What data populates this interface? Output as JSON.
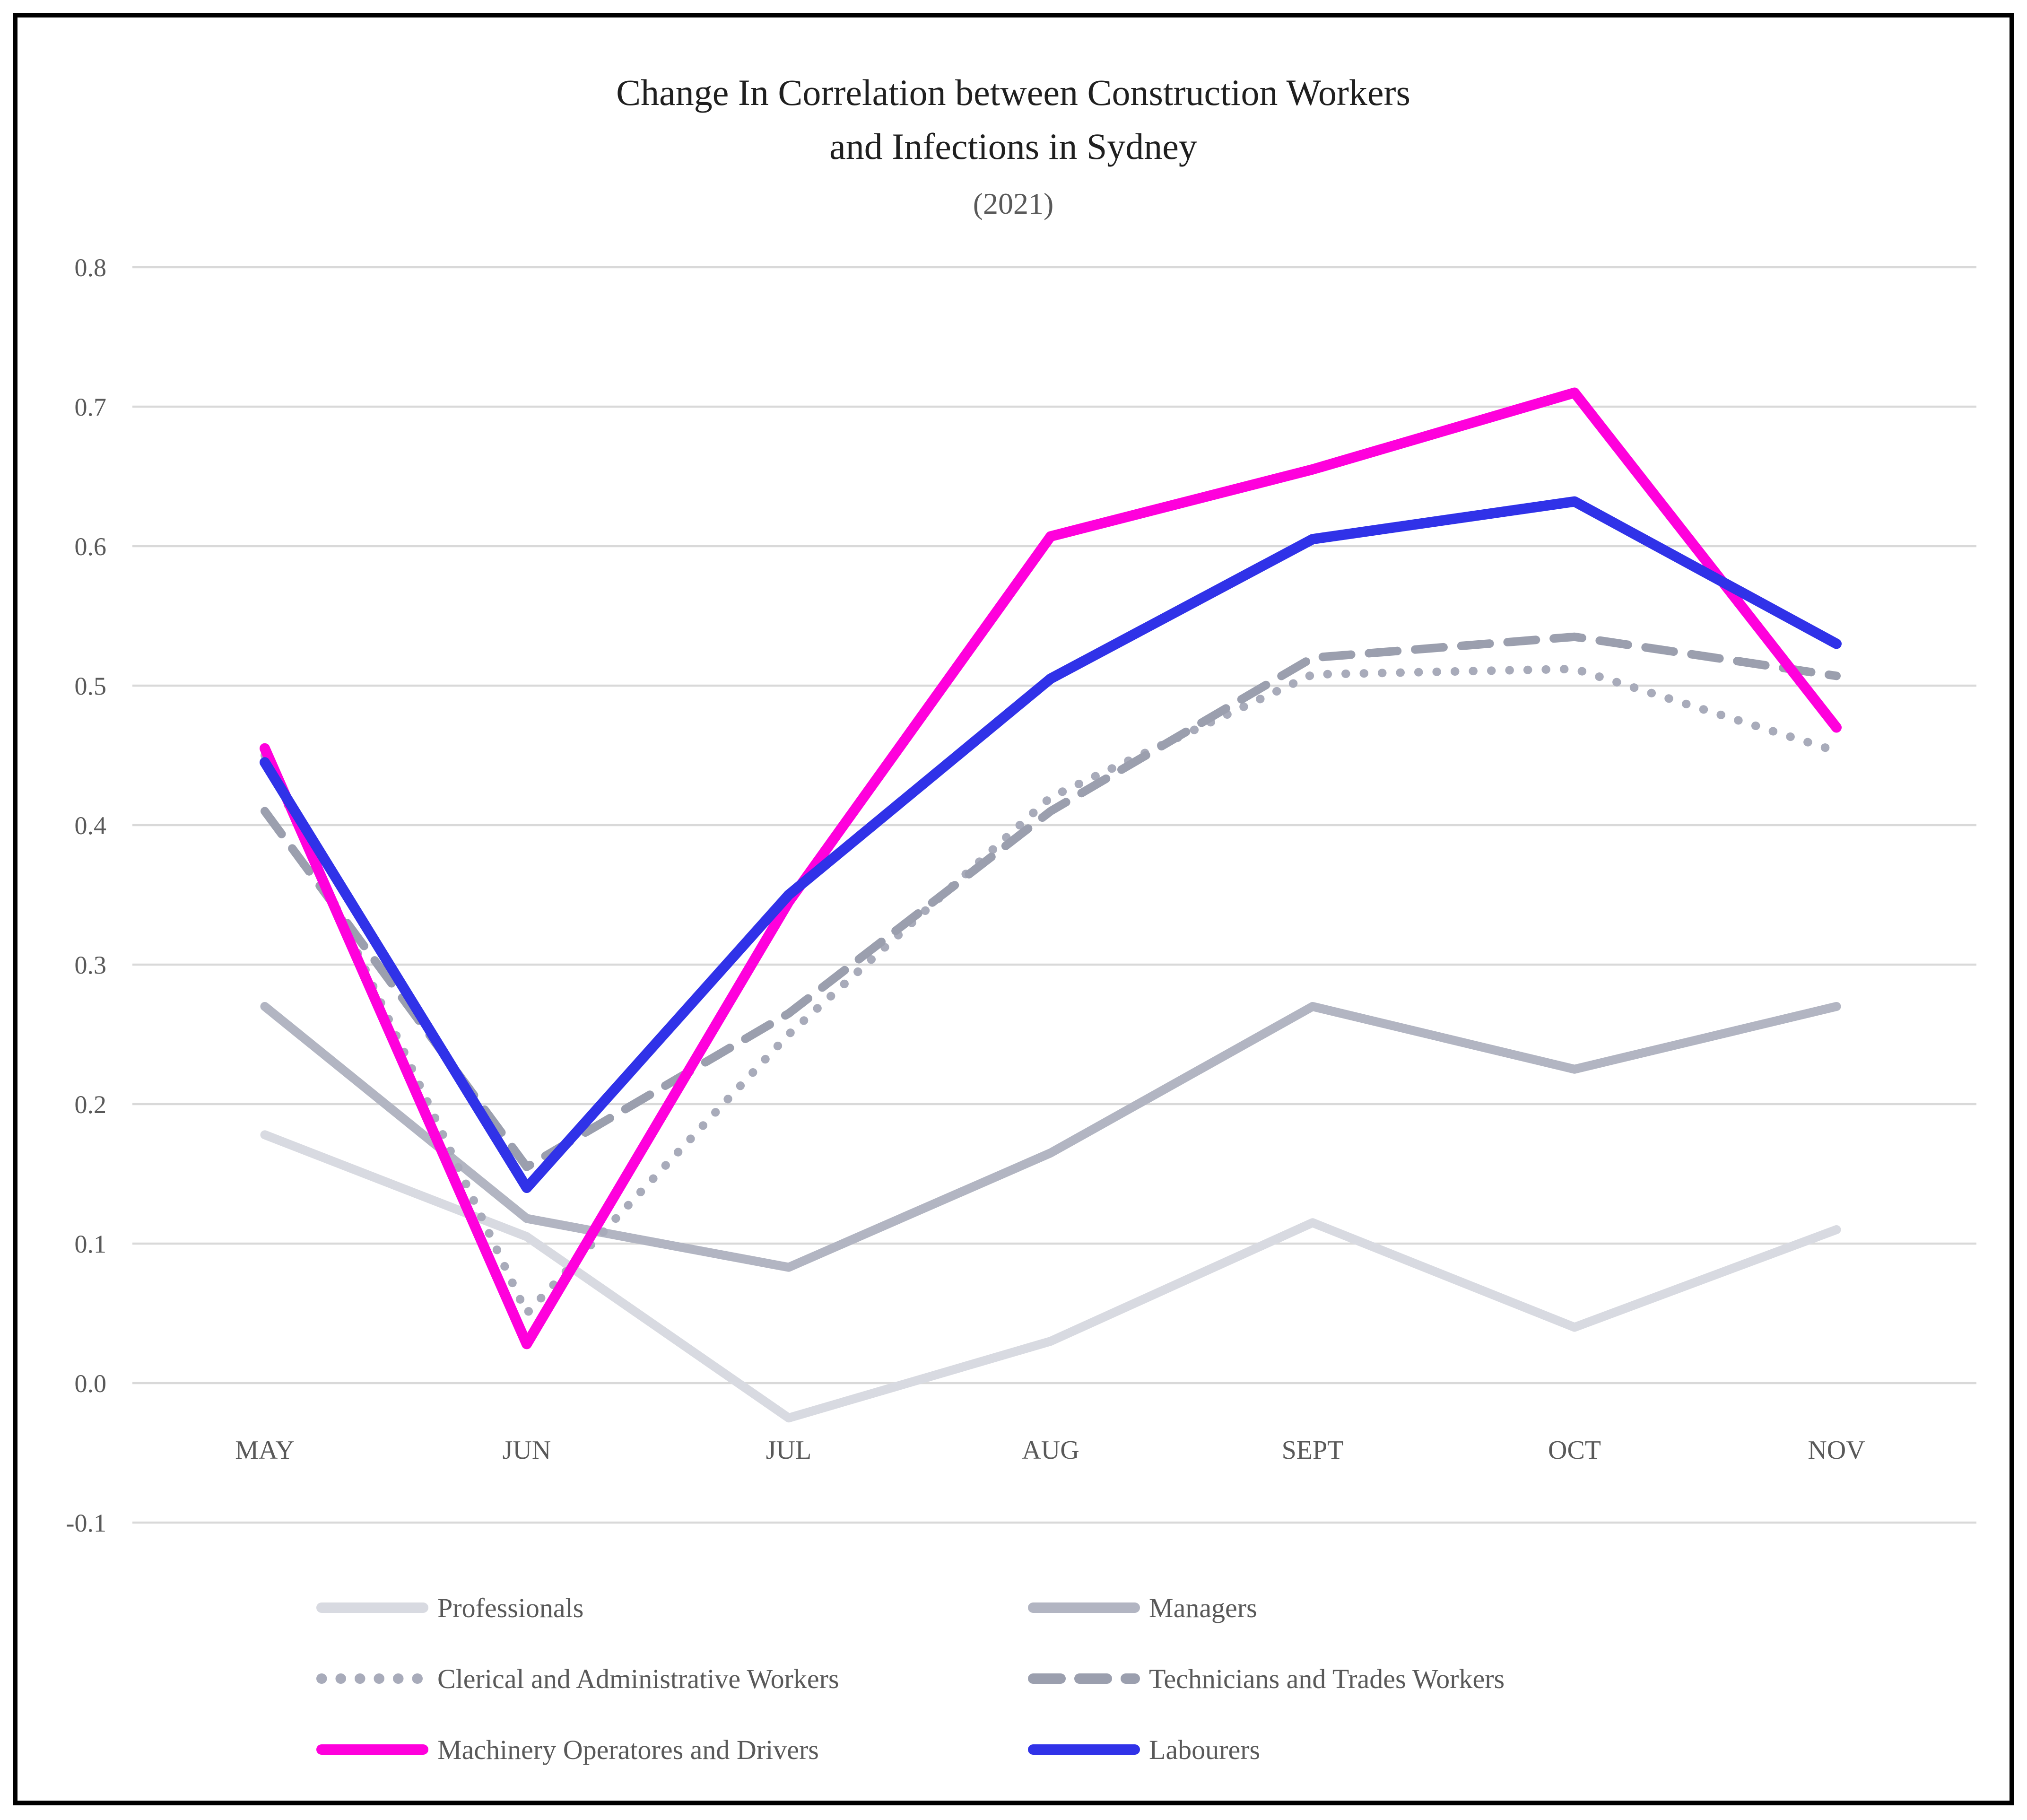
{
  "page": {
    "title_line1": "Change In Correlation between Construction Workers",
    "title_line2": "and Infections in Sydney",
    "subtitle": "(2021)"
  },
  "chart_data": {
    "type": "line",
    "title": "Change In Correlation between Construction Workers and Infections in Sydney",
    "subtitle": "(2021)",
    "xlabel": "",
    "ylabel": "",
    "categories": [
      "MAY",
      "JUN",
      "JUL",
      "AUG",
      "SEPT",
      "OCT",
      "NOV"
    ],
    "ylim": [
      -0.1,
      0.8
    ],
    "ytick_labels": [
      "0.8",
      "0.7",
      "0.6",
      "0.5",
      "0.4",
      "0.3",
      "0.2",
      "0.1",
      "0.0",
      "-0.1"
    ],
    "ytick_values": [
      0.8,
      0.7,
      0.6,
      0.5,
      0.4,
      0.3,
      0.2,
      0.1,
      0.0,
      -0.1
    ],
    "grid": "horizontal-only",
    "legend_position": "bottom-two-columns",
    "series": [
      {
        "name": "Professionals",
        "style": "solid",
        "color": "#d8dae1",
        "values": [
          0.178,
          0.105,
          -0.025,
          0.03,
          0.115,
          0.04,
          0.11
        ]
      },
      {
        "name": "Managers",
        "style": "solid",
        "color": "#b2b5c2",
        "values": [
          0.27,
          0.118,
          0.083,
          0.165,
          0.27,
          0.225,
          0.27
        ]
      },
      {
        "name": "Clerical and Administrative Workers",
        "style": "dotted",
        "color": "#a8abba",
        "values": [
          0.45,
          0.05,
          0.25,
          0.42,
          0.508,
          0.512,
          0.453
        ]
      },
      {
        "name": "Technicians and Trades Workers",
        "style": "dashed",
        "color": "#9b9fae",
        "values": [
          0.41,
          0.155,
          0.265,
          0.41,
          0.52,
          0.535,
          0.507
        ]
      },
      {
        "name": "Machinery Operatores and Drivers",
        "style": "solid",
        "color": "#ff00dc",
        "values": [
          0.455,
          0.028,
          0.345,
          0.607,
          0.655,
          0.71,
          0.47
        ]
      },
      {
        "name": "Labourers",
        "style": "solid",
        "color": "#3032e8",
        "values": [
          0.445,
          0.14,
          0.35,
          0.505,
          0.605,
          0.632,
          0.53
        ]
      }
    ],
    "colors": {
      "gridline": "#d9d9d9",
      "axis_text": "#595959",
      "title_text": "#1f1f1f",
      "subtitle_text": "#595959",
      "frame_border": "#000000",
      "background": "#ffffff"
    }
  }
}
